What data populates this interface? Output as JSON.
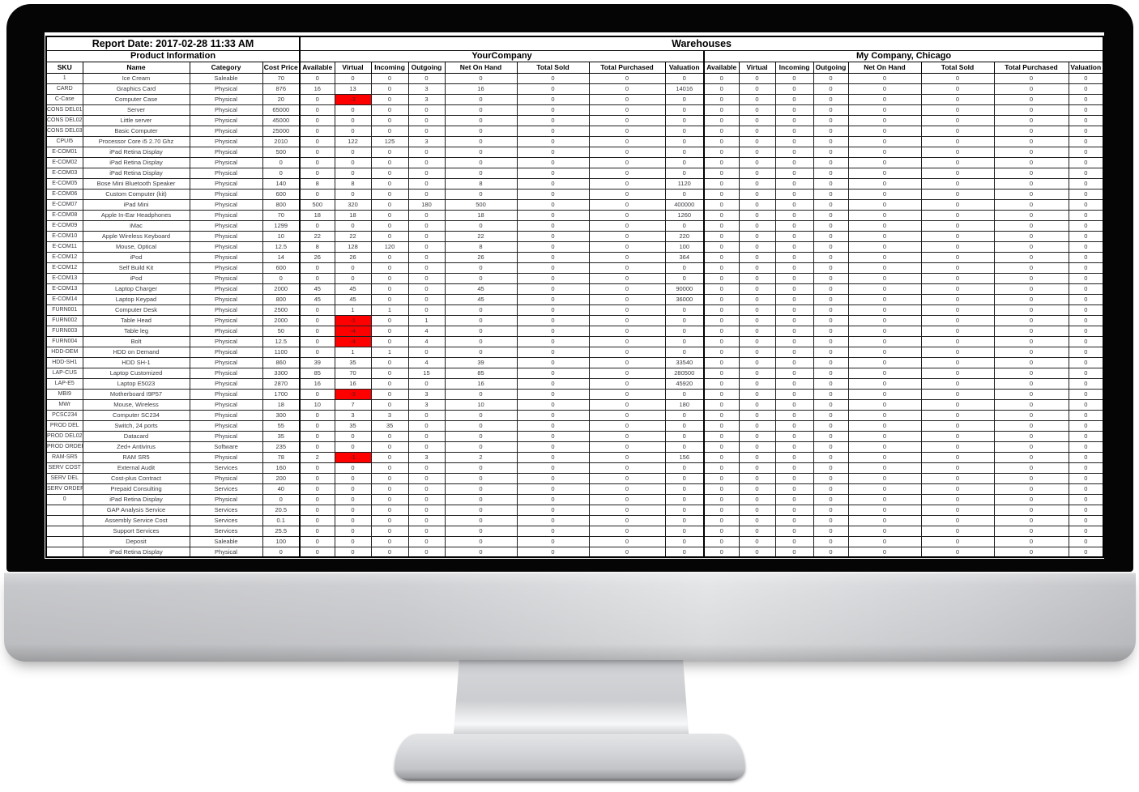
{
  "report": {
    "title": "Report Date: 2017-02-28 11:33 AM",
    "sections": {
      "product_info": "Product Information",
      "warehouses": "Warehouses",
      "warehouse1": "YourCompany",
      "warehouse2": "My Company, Chicago"
    },
    "product_columns": [
      "SKU",
      "Name",
      "Category",
      "Cost Price"
    ],
    "warehouse_columns": [
      "Available",
      "Virtual",
      "Incoming",
      "Outgoing",
      "Net On Hand",
      "Total Sold",
      "Total Purchased",
      "Valuation"
    ],
    "zero_values": [
      0,
      0,
      0,
      0,
      0,
      0,
      0,
      0
    ],
    "warehouse2_note": "all values zero for every row",
    "rows": [
      [
        "1",
        "Ice Cream",
        "Saleable",
        "70"
      ],
      [
        "CARD",
        "Graphics Card",
        "Physical",
        "876",
        [
          16,
          13,
          0,
          3,
          16,
          0,
          0,
          14016
        ]
      ],
      [
        "C-Case",
        "Computer Case",
        "Physical",
        "20",
        [
          0,
          -3,
          0,
          3,
          0,
          0,
          0,
          0
        ]
      ],
      [
        "CONS DEL01",
        "Server",
        "Physical",
        "65000"
      ],
      [
        "CONS DEL02",
        "Little server",
        "Physical",
        "45000"
      ],
      [
        "CONS DEL03",
        "Basic Computer",
        "Physical",
        "25000"
      ],
      [
        "CPUI5",
        "Processor Core i5 2.70 Ghz",
        "Physical",
        "2010",
        [
          0,
          122,
          125,
          3,
          0,
          0,
          0,
          0
        ]
      ],
      [
        "E-COM01",
        "iPad Retina Display",
        "Physical",
        "500"
      ],
      [
        "E-COM02",
        "iPad Retina Display",
        "Physical",
        "0"
      ],
      [
        "E-COM03",
        "iPad Retina Display",
        "Physical",
        "0"
      ],
      [
        "E-COM05",
        "Bose Mini Bluetooth Speaker",
        "Physical",
        "140",
        [
          8,
          8,
          0,
          0,
          8,
          0,
          0,
          1120
        ]
      ],
      [
        "E-COM06",
        "Custom Computer (kit)",
        "Physical",
        "600"
      ],
      [
        "E-COM07",
        "iPad Mini",
        "Physical",
        "800",
        [
          500,
          320,
          0,
          180,
          500,
          0,
          0,
          400000
        ]
      ],
      [
        "E-COM08",
        "Apple In-Ear Headphones",
        "Physical",
        "70",
        [
          18,
          18,
          0,
          0,
          18,
          0,
          0,
          1260
        ]
      ],
      [
        "E-COM09",
        "iMac",
        "Physical",
        "1299"
      ],
      [
        "E-COM10",
        "Apple Wireless Keyboard",
        "Physical",
        "10",
        [
          22,
          22,
          0,
          0,
          22,
          0,
          0,
          220
        ]
      ],
      [
        "E-COM11",
        "Mouse, Optical",
        "Physical",
        "12.5",
        [
          8,
          128,
          120,
          0,
          8,
          0,
          0,
          100
        ]
      ],
      [
        "E-COM12",
        "iPod",
        "Physical",
        "14",
        [
          26,
          26,
          0,
          0,
          26,
          0,
          0,
          364
        ]
      ],
      [
        "E-COM12",
        "Self Build Kit",
        "Physical",
        "600"
      ],
      [
        "E-COM13",
        "iPod",
        "Physical",
        "0"
      ],
      [
        "E-COM13",
        "Laptop Charger",
        "Physical",
        "2000",
        [
          45,
          45,
          0,
          0,
          45,
          0,
          0,
          90000
        ]
      ],
      [
        "E-COM14",
        "Laptop Keypad",
        "Physical",
        "800",
        [
          45,
          45,
          0,
          0,
          45,
          0,
          0,
          36000
        ]
      ],
      [
        "FURN001",
        "Computer Desk",
        "Physical",
        "2500",
        [
          0,
          1,
          1,
          0,
          0,
          0,
          0,
          0
        ]
      ],
      [
        "FURN002",
        "Table Head",
        "Physical",
        "2000",
        [
          0,
          -1,
          0,
          1,
          0,
          0,
          0,
          0
        ]
      ],
      [
        "FURN003",
        "Table leg",
        "Physical",
        "50",
        [
          0,
          -4,
          0,
          4,
          0,
          0,
          0,
          0
        ]
      ],
      [
        "FURN004",
        "Bolt",
        "Physical",
        "12.5",
        [
          0,
          -4,
          0,
          4,
          0,
          0,
          0,
          0
        ]
      ],
      [
        "HDD-DEM",
        "HDD on Demand",
        "Physical",
        "1100",
        [
          0,
          1,
          1,
          0,
          0,
          0,
          0,
          0
        ]
      ],
      [
        "HDD-SH1",
        "HDD SH-1",
        "Physical",
        "860",
        [
          39,
          35,
          0,
          4,
          39,
          0,
          0,
          33540
        ]
      ],
      [
        "LAP-CUS",
        "Laptop Customized",
        "Physical",
        "3300",
        [
          85,
          70,
          0,
          15,
          85,
          0,
          0,
          280500
        ]
      ],
      [
        "LAP-E5",
        "Laptop E5023",
        "Physical",
        "2870",
        [
          16,
          16,
          0,
          0,
          16,
          0,
          0,
          45920
        ]
      ],
      [
        "MBI9",
        "Motherboard I9P57",
        "Physical",
        "1700",
        [
          0,
          -3,
          0,
          3,
          0,
          0,
          0,
          0
        ]
      ],
      [
        "MWr",
        "Mouse, Wireless",
        "Physical",
        "18",
        [
          10,
          7,
          0,
          3,
          10,
          0,
          0,
          180
        ]
      ],
      [
        "PCSC234",
        "Computer SC234",
        "Physical",
        "300",
        [
          0,
          3,
          3,
          0,
          0,
          0,
          0,
          0
        ]
      ],
      [
        "PROD DEL",
        "Switch, 24 ports",
        "Physical",
        "55",
        [
          0,
          35,
          35,
          0,
          0,
          0,
          0,
          0
        ]
      ],
      [
        "PROD DEL02",
        "Datacard",
        "Physical",
        "35"
      ],
      [
        "PROD ORDER",
        "Zed+ Antivirus",
        "Software",
        "235"
      ],
      [
        "RAM-SR5",
        "RAM SR5",
        "Physical",
        "78",
        [
          2,
          -1,
          0,
          3,
          2,
          0,
          0,
          156
        ]
      ],
      [
        "SERV COST",
        "External Audit",
        "Services",
        "160"
      ],
      [
        "SERV DEL",
        "Cost-plus Contract",
        "Physical",
        "200"
      ],
      [
        "SERV ORDER",
        "Prepaid Consulting",
        "Services",
        "40"
      ],
      [
        "0",
        "iPad Retina Display",
        "Physical",
        "0"
      ],
      [
        "",
        "GAP Analysis Service",
        "Services",
        "20.5"
      ],
      [
        "",
        "Assembly Service Cost",
        "Services",
        "0.1"
      ],
      [
        "",
        "Support Services",
        "Services",
        "25.5"
      ],
      [
        "",
        "Deposit",
        "Saleable",
        "100"
      ],
      [
        "",
        "iPad Retina Display",
        "Physical",
        "0"
      ]
    ]
  },
  "colors": {
    "negative_cell_bg": "#ff0000",
    "negative_cell_text": "#8b1414",
    "header_text": "#000000",
    "data_text": "#3a3b40"
  }
}
